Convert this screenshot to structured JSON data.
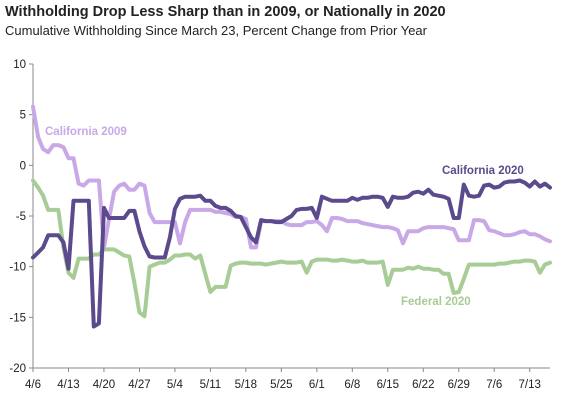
{
  "chart_data": {
    "type": "line",
    "title": "Withholding Drop Less Sharp than in 2009, or Nationally in 2020",
    "subtitle": "Cumulative Withholding Since March 23, Percent Change from Prior Year",
    "xlabel": "",
    "ylabel": "",
    "ylim": [
      -20,
      10
    ],
    "y_ticks": [
      10,
      5,
      0,
      -5,
      -10,
      -15,
      -20
    ],
    "x_ticks": [
      "4/6",
      "4/13",
      "4/20",
      "4/27",
      "5/4",
      "5/11",
      "5/18",
      "5/25",
      "6/1",
      "6/8",
      "6/15",
      "6/22",
      "6/29",
      "7/6",
      "7/13"
    ],
    "grid": false,
    "legend": "none (series labeled directly on chart)",
    "series": [
      {
        "name": "California 2009",
        "color": "#c9a8e8",
        "x": [
          0,
          1,
          2,
          3,
          4,
          5,
          6,
          7,
          8,
          9,
          10,
          11,
          12,
          13,
          14,
          15,
          16,
          17,
          18,
          19,
          20,
          21,
          22,
          23,
          24,
          25,
          26,
          27,
          28,
          29,
          30,
          31,
          32,
          33,
          34,
          35,
          36,
          37,
          38,
          39,
          40,
          41,
          42,
          43,
          44,
          45,
          46,
          47,
          48,
          49,
          50,
          51,
          52,
          53,
          54,
          55,
          56,
          57,
          58,
          59,
          60,
          61,
          62,
          63,
          64,
          65,
          66,
          67,
          68,
          69,
          70,
          71,
          72,
          73,
          74,
          75,
          76,
          77,
          78,
          79,
          80,
          81,
          82,
          83,
          84,
          85,
          86,
          87,
          88,
          89,
          90,
          91,
          92,
          93,
          94,
          95,
          96,
          97,
          98,
          99,
          100,
          101,
          102
        ],
        "values": [
          5.8,
          2.8,
          1.6,
          1.3,
          2,
          2,
          1.8,
          0.7,
          0.7,
          -1.8,
          -2,
          -1.5,
          -1.5,
          -1.5,
          -8.1,
          -5.3,
          -2.6,
          -2,
          -1.8,
          -2.4,
          -2.4,
          -1.8,
          -2,
          -4.7,
          -5.6,
          -5.6,
          -5.6,
          -5.6,
          -5.6,
          -7.7,
          -5.6,
          -4.4,
          -4.4,
          -4.4,
          -4.4,
          -4.4,
          -4.6,
          -4.6,
          -4.7,
          -4.8,
          -5.1,
          -5.1,
          -5.3,
          -8.1,
          -8.1,
          -5.5,
          -5.5,
          -5.5,
          -5.5,
          -5.5,
          -5.8,
          -5.9,
          -5.9,
          -5.9,
          -5.6,
          -5.6,
          -5.5,
          -5.9,
          -6.5,
          -5.2,
          -5.2,
          -5.3,
          -5.5,
          -5.5,
          -5.5,
          -5.7,
          -5.8,
          -5.9,
          -6,
          -6.1,
          -6.1,
          -6.2,
          -6.4,
          -7.7,
          -6.5,
          -6.5,
          -6.5,
          -6.2,
          -6.1,
          -6.1,
          -6.1,
          -6.1,
          -6.2,
          -6.3,
          -7.4,
          -7.4,
          -7.4,
          -5.4,
          -5.4,
          -5.5,
          -6.4,
          -6.5,
          -6.7,
          -6.9,
          -6.9,
          -6.8,
          -6.6,
          -6.5,
          -6.8,
          -6.8,
          -7,
          -7.3,
          -7.5
        ]
      },
      {
        "name": "California 2020",
        "color": "#5b4a8c",
        "x": [
          0,
          1,
          2,
          3,
          4,
          5,
          6,
          7,
          8,
          9,
          10,
          11,
          12,
          13,
          14,
          15,
          16,
          17,
          18,
          19,
          20,
          21,
          22,
          23,
          24,
          25,
          26,
          27,
          28,
          29,
          30,
          31,
          32,
          33,
          34,
          35,
          36,
          37,
          38,
          39,
          40,
          41,
          42,
          43,
          44,
          45,
          46,
          47,
          48,
          49,
          50,
          51,
          52,
          53,
          54,
          55,
          56,
          57,
          58,
          59,
          60,
          61,
          62,
          63,
          64,
          65,
          66,
          67,
          68,
          69,
          70,
          71,
          72,
          73,
          74,
          75,
          76,
          77,
          78,
          79,
          80,
          81,
          82,
          83,
          84,
          85,
          86,
          87,
          88,
          89,
          90,
          91,
          92,
          93,
          94,
          95,
          96,
          97,
          98,
          99,
          100,
          101,
          102
        ],
        "values": [
          -9.1,
          -8.6,
          -8.1,
          -6.9,
          -6.9,
          -6.9,
          -7.6,
          -10.2,
          -3.5,
          -3.5,
          -3.5,
          -3.5,
          -15.9,
          -15.6,
          -4.2,
          -5.2,
          -5.2,
          -5.2,
          -5.2,
          -4.5,
          -4.5,
          -6.5,
          -8,
          -9,
          -9.1,
          -9.1,
          -9.1,
          -7.1,
          -4.3,
          -3.3,
          -3.1,
          -3.1,
          -3.1,
          -3,
          -3.5,
          -3.5,
          -4,
          -4.2,
          -4.2,
          -4.5,
          -5,
          -5.1,
          -6.1,
          -7.1,
          -7.6,
          -5.4,
          -5.5,
          -5.5,
          -5.6,
          -5.6,
          -5.3,
          -5,
          -4.4,
          -4.3,
          -4.3,
          -4.2,
          -5.2,
          -3.1,
          -3.3,
          -3.5,
          -3.5,
          -3.5,
          -3.5,
          -3.2,
          -3.4,
          -3.2,
          -3.2,
          -3.1,
          -3.1,
          -3.2,
          -4.1,
          -3.1,
          -3.2,
          -3.2,
          -3.1,
          -2.7,
          -2.6,
          -2.8,
          -2.4,
          -2.9,
          -3,
          -3.1,
          -3.3,
          -5.2,
          -5.2,
          -1.9,
          -3,
          -3.1,
          -3,
          -2,
          -1.9,
          -2.2,
          -2.1,
          -1.7,
          -1.6,
          -1.6,
          -1.5,
          -1.7,
          -2.1,
          -1.6,
          -2.1,
          -1.8,
          -2.2
        ]
      },
      {
        "name": "Federal 2020",
        "color": "#a7cc95",
        "x": [
          0,
          1,
          2,
          3,
          4,
          5,
          6,
          7,
          8,
          9,
          10,
          11,
          12,
          13,
          14,
          15,
          16,
          17,
          18,
          19,
          20,
          21,
          22,
          23,
          24,
          25,
          26,
          27,
          28,
          29,
          30,
          31,
          32,
          33,
          34,
          35,
          36,
          37,
          38,
          39,
          40,
          41,
          42,
          43,
          44,
          45,
          46,
          47,
          48,
          49,
          50,
          51,
          52,
          53,
          54,
          55,
          56,
          57,
          58,
          59,
          60,
          61,
          62,
          63,
          64,
          65,
          66,
          67,
          68,
          69,
          70,
          71,
          72,
          73,
          74,
          75,
          76,
          77,
          78,
          79,
          80,
          81,
          82,
          83,
          84,
          85,
          86,
          87,
          88,
          89,
          90,
          91,
          92,
          93,
          94,
          95,
          96,
          97,
          98,
          99,
          100,
          101,
          102
        ],
        "values": [
          -1.5,
          -2.2,
          -3,
          -4.4,
          -4.4,
          -4.4,
          -8.1,
          -10.6,
          -11.1,
          -9.2,
          -9.2,
          -9.2,
          -8.8,
          -8.8,
          -8.3,
          -8.3,
          -8.3,
          -8.6,
          -8.9,
          -9,
          -11.6,
          -14.5,
          -14.9,
          -10,
          -9.8,
          -9.6,
          -9.6,
          -9.3,
          -8.9,
          -8.9,
          -8.8,
          -8.8,
          -9.2,
          -8.9,
          -10.7,
          -12.5,
          -12,
          -12,
          -12,
          -9.9,
          -9.7,
          -9.6,
          -9.6,
          -9.7,
          -9.7,
          -9.7,
          -9.8,
          -9.7,
          -9.6,
          -9.5,
          -9.6,
          -9.6,
          -9.6,
          -9.5,
          -10.6,
          -9.5,
          -9.3,
          -9.3,
          -9.3,
          -9.4,
          -9.4,
          -9.3,
          -9.4,
          -9.5,
          -9.5,
          -9.4,
          -9.6,
          -9.6,
          -9.6,
          -9.5,
          -11.8,
          -10.3,
          -10.3,
          -10.3,
          -10.1,
          -10.2,
          -10,
          -10.2,
          -10.2,
          -10.3,
          -10.3,
          -10.7,
          -10.7,
          -12.6,
          -12.5,
          -11.2,
          -9.8,
          -9.8,
          -9.8,
          -9.8,
          -9.8,
          -9.8,
          -9.7,
          -9.7,
          -9.6,
          -9.5,
          -9.5,
          -9.4,
          -9.4,
          -9.5,
          -10.6,
          -9.8,
          -9.6
        ]
      }
    ],
    "annotations": [
      {
        "text": "California 2009",
        "series": "California 2009"
      },
      {
        "text": "California 2020",
        "series": "California 2020"
      },
      {
        "text": "Federal 2020",
        "series": "Federal 2020"
      }
    ]
  }
}
